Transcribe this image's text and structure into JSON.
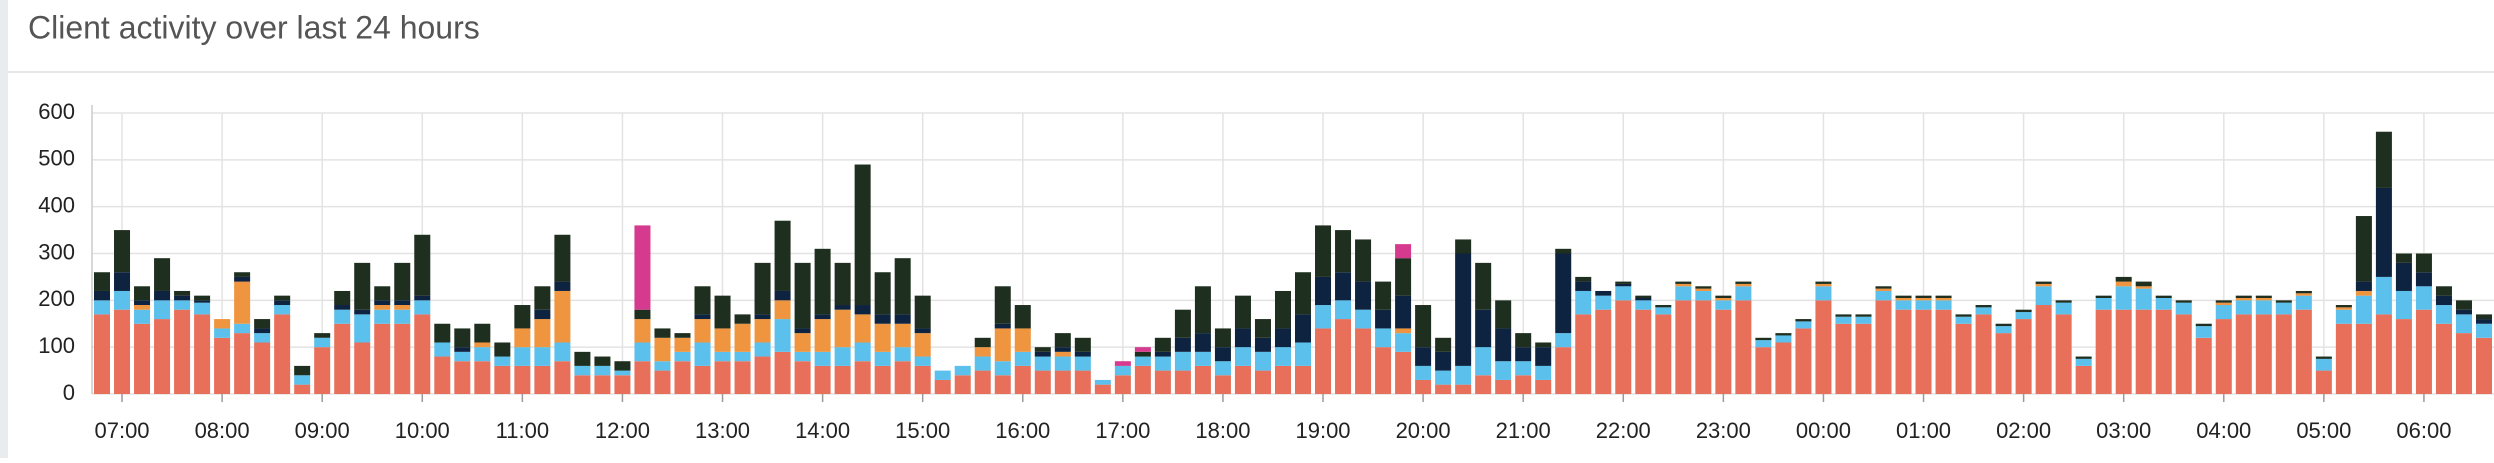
{
  "chart_data": {
    "type": "stacked-bar",
    "title": "Client activity over last 24 hours",
    "categories": [
      null,
      "07:00",
      null,
      null,
      null,
      null,
      "08:00",
      null,
      null,
      null,
      null,
      "09:00",
      null,
      null,
      null,
      null,
      "10:00",
      null,
      null,
      null,
      null,
      "11:00",
      null,
      null,
      null,
      null,
      "12:00",
      null,
      null,
      null,
      null,
      "13:00",
      null,
      null,
      null,
      null,
      "14:00",
      null,
      null,
      null,
      null,
      "15:00",
      null,
      null,
      null,
      null,
      "16:00",
      null,
      null,
      null,
      null,
      "17:00",
      null,
      null,
      null,
      null,
      "18:00",
      null,
      null,
      null,
      null,
      "19:00",
      null,
      null,
      null,
      null,
      "20:00",
      null,
      null,
      null,
      null,
      "21:00",
      null,
      null,
      null,
      null,
      "22:00",
      null,
      null,
      null,
      null,
      "23:00",
      null,
      null,
      null,
      null,
      "00:00",
      null,
      null,
      null,
      null,
      "01:00",
      null,
      null,
      null,
      null,
      "02:00",
      null,
      null,
      null,
      null,
      "03:00",
      null,
      null,
      null,
      null,
      "04:00",
      null,
      null,
      null,
      null,
      "05:00",
      null,
      null,
      null,
      null,
      "06:00",
      null,
      null,
      null
    ],
    "series": [
      {
        "color": "#e8705b",
        "values": [
          170,
          180,
          150,
          160,
          180,
          170,
          120,
          130,
          110,
          170,
          20,
          100,
          150,
          110,
          150,
          150,
          170,
          80,
          70,
          70,
          60,
          60,
          60,
          70,
          40,
          40,
          40,
          70,
          50,
          70,
          60,
          70,
          70,
          80,
          90,
          70,
          60,
          60,
          70,
          60,
          70,
          60,
          30,
          40,
          50,
          40,
          60,
          50,
          50,
          50,
          20,
          40,
          60,
          50,
          50,
          60,
          40,
          60,
          50,
          60,
          60,
          140,
          160,
          140,
          100,
          90,
          30,
          20,
          20,
          40,
          30,
          40,
          30,
          100,
          170,
          180,
          200,
          180,
          170,
          200,
          200,
          180,
          200,
          100,
          110,
          140,
          200,
          150,
          150,
          200,
          180,
          180,
          180,
          150,
          170,
          130,
          160,
          190,
          170,
          60,
          180,
          180,
          180,
          180,
          170,
          120,
          160,
          170,
          170,
          170,
          180,
          50,
          150,
          150,
          170,
          160,
          180,
          150,
          130,
          120
        ]
      },
      {
        "color": "#5bc0eb",
        "values": [
          30,
          40,
          30,
          40,
          20,
          25,
          20,
          20,
          20,
          20,
          20,
          20,
          30,
          60,
          30,
          30,
          30,
          30,
          20,
          30,
          20,
          40,
          40,
          40,
          20,
          20,
          10,
          40,
          20,
          20,
          50,
          20,
          20,
          30,
          70,
          20,
          30,
          40,
          40,
          30,
          30,
          20,
          20,
          20,
          30,
          30,
          30,
          30,
          30,
          30,
          10,
          20,
          20,
          30,
          40,
          30,
          30,
          40,
          40,
          40,
          50,
          50,
          40,
          40,
          40,
          40,
          30,
          30,
          40,
          60,
          40,
          30,
          30,
          30,
          50,
          30,
          30,
          20,
          15,
          30,
          20,
          20,
          30,
          15,
          15,
          15,
          30,
          15,
          15,
          20,
          20,
          20,
          20,
          15,
          15,
          15,
          15,
          40,
          25,
          15,
          25,
          50,
          45,
          25,
          25,
          25,
          30,
          30,
          30,
          25,
          30,
          25,
          30,
          60,
          80,
          60,
          50,
          40,
          40,
          30
        ]
      },
      {
        "color": "#f0953f",
        "values": [
          0,
          0,
          10,
          0,
          0,
          0,
          20,
          90,
          0,
          0,
          0,
          0,
          0,
          0,
          10,
          10,
          0,
          0,
          0,
          10,
          0,
          40,
          60,
          110,
          0,
          0,
          0,
          50,
          50,
          30,
          50,
          50,
          60,
          50,
          40,
          40,
          70,
          80,
          60,
          60,
          50,
          50,
          0,
          0,
          20,
          70,
          50,
          0,
          10,
          0,
          0,
          0,
          0,
          0,
          0,
          0,
          0,
          0,
          0,
          0,
          0,
          0,
          0,
          0,
          0,
          10,
          0,
          0,
          0,
          0,
          0,
          0,
          0,
          0,
          0,
          0,
          0,
          0,
          0,
          5,
          5,
          5,
          5,
          0,
          0,
          0,
          5,
          0,
          0,
          5,
          5,
          5,
          5,
          0,
          0,
          0,
          0,
          5,
          0,
          0,
          0,
          10,
          5,
          0,
          0,
          0,
          5,
          5,
          5,
          0,
          5,
          0,
          5,
          10,
          0,
          0,
          0,
          0,
          0,
          0
        ]
      },
      {
        "color": "#0d2340",
        "values": [
          20,
          40,
          10,
          20,
          10,
          5,
          0,
          10,
          10,
          10,
          0,
          0,
          10,
          10,
          10,
          10,
          10,
          0,
          10,
          0,
          0,
          0,
          20,
          20,
          0,
          0,
          0,
          0,
          0,
          0,
          10,
          0,
          0,
          10,
          20,
          10,
          10,
          10,
          20,
          20,
          20,
          10,
          0,
          0,
          0,
          10,
          0,
          10,
          10,
          10,
          0,
          0,
          0,
          10,
          30,
          40,
          30,
          40,
          30,
          40,
          60,
          60,
          60,
          60,
          40,
          70,
          40,
          40,
          240,
          80,
          70,
          30,
          40,
          170,
          20,
          10,
          5,
          5,
          0,
          0,
          0,
          0,
          0,
          0,
          0,
          0,
          0,
          0,
          0,
          0,
          0,
          0,
          0,
          0,
          0,
          0,
          0,
          0,
          0,
          0,
          0,
          0,
          0,
          0,
          0,
          0,
          0,
          0,
          0,
          0,
          0,
          0,
          0,
          20,
          190,
          60,
          30,
          20,
          10,
          10
        ]
      },
      {
        "color": "#1f2f1f",
        "values": [
          40,
          90,
          30,
          70,
          10,
          10,
          0,
          10,
          20,
          10,
          20,
          10,
          30,
          100,
          30,
          80,
          130,
          40,
          40,
          40,
          30,
          50,
          50,
          100,
          30,
          20,
          20,
          20,
          20,
          10,
          60,
          70,
          20,
          110,
          150,
          140,
          140,
          90,
          300,
          90,
          120,
          70,
          0,
          0,
          20,
          80,
          50,
          10,
          30,
          30,
          0,
          0,
          10,
          30,
          60,
          100,
          40,
          70,
          40,
          80,
          90,
          110,
          90,
          90,
          60,
          80,
          90,
          30,
          30,
          100,
          60,
          30,
          10,
          10,
          10,
          0,
          5,
          5,
          5,
          5,
          5,
          5,
          5,
          5,
          5,
          5,
          5,
          5,
          5,
          5,
          5,
          5,
          5,
          5,
          5,
          5,
          5,
          5,
          5,
          5,
          5,
          10,
          10,
          5,
          5,
          5,
          5,
          5,
          5,
          5,
          5,
          5,
          5,
          140,
          120,
          20,
          40,
          20,
          20,
          10
        ]
      },
      {
        "color": "#d63a8e",
        "values": [
          0,
          0,
          0,
          0,
          0,
          0,
          0,
          0,
          0,
          0,
          0,
          0,
          0,
          0,
          0,
          0,
          0,
          0,
          0,
          0,
          0,
          0,
          0,
          0,
          0,
          0,
          0,
          180,
          0,
          0,
          0,
          0,
          0,
          0,
          0,
          0,
          0,
          0,
          0,
          0,
          0,
          0,
          0,
          0,
          0,
          0,
          0,
          0,
          0,
          0,
          0,
          10,
          10,
          0,
          0,
          0,
          0,
          0,
          0,
          0,
          0,
          0,
          0,
          0,
          0,
          30,
          0,
          0,
          0,
          0,
          0,
          0,
          0,
          0,
          0,
          0,
          0,
          0,
          0,
          0,
          0,
          0,
          0,
          0,
          0,
          0,
          0,
          0,
          0,
          0,
          0,
          0,
          0,
          0,
          0,
          0,
          0,
          0,
          0,
          0,
          0,
          0,
          0,
          0,
          0,
          0,
          0,
          0,
          0,
          0,
          0,
          0,
          0,
          0,
          0,
          0,
          0,
          0,
          0,
          0
        ]
      }
    ],
    "ylim": [
      0,
      600
    ],
    "yticks": [
      0,
      100,
      200,
      300,
      400,
      500,
      600
    ],
    "grid": true
  }
}
